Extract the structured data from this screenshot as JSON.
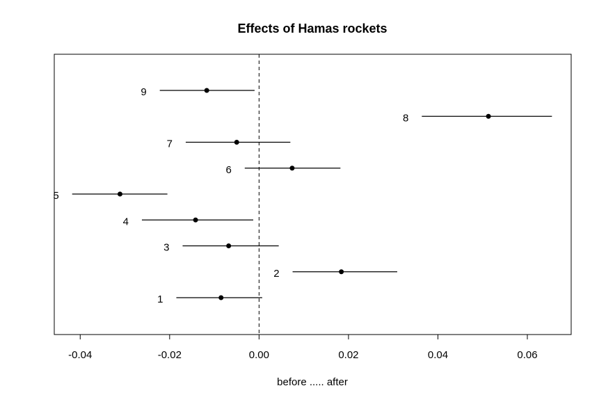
{
  "chart_data": {
    "type": "scatter",
    "title": "Effects of Hamas rockets",
    "xlabel": "before ..... after",
    "ylabel": "",
    "xlim": [
      -0.0458,
      0.0698
    ],
    "x_ticks": [
      -0.04,
      -0.02,
      0.0,
      0.02,
      0.04,
      0.06
    ],
    "x_tick_labels": [
      "-0.04",
      "-0.02",
      "0.00",
      "0.02",
      "0.04",
      "0.06"
    ],
    "reference_line_x": 0,
    "grid": false,
    "legend": "none",
    "points": [
      {
        "label": "1",
        "estimate": -0.0085,
        "lower": -0.0185,
        "upper": 0.0007
      },
      {
        "label": "2",
        "estimate": 0.0184,
        "lower": 0.0075,
        "upper": 0.0309
      },
      {
        "label": "3",
        "estimate": -0.0068,
        "lower": -0.0171,
        "upper": 0.0044
      },
      {
        "label": "4",
        "estimate": -0.0142,
        "lower": -0.0262,
        "upper": -0.0013
      },
      {
        "label": "5",
        "estimate": -0.0311,
        "lower": -0.0418,
        "upper": -0.0205
      },
      {
        "label": "6",
        "estimate": 0.0074,
        "lower": -0.0032,
        "upper": 0.0182
      },
      {
        "label": "7",
        "estimate": -0.005,
        "lower": -0.0164,
        "upper": 0.007
      },
      {
        "label": "8",
        "estimate": 0.0513,
        "lower": 0.0364,
        "upper": 0.0655
      },
      {
        "label": "9",
        "estimate": -0.0117,
        "lower": -0.0222,
        "upper": -0.001
      }
    ]
  }
}
